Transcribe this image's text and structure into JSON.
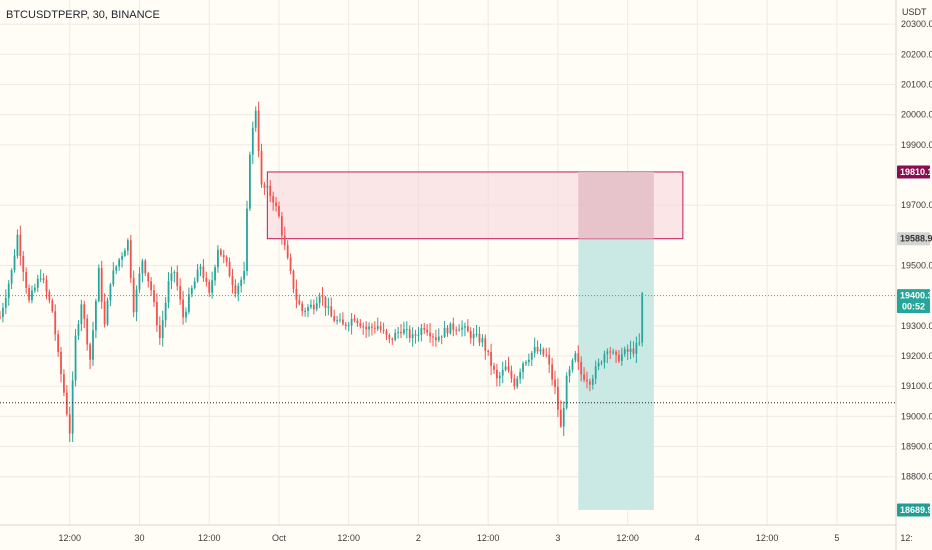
{
  "header": {
    "symbol": "BTCUSDTPERP, 30, BINANCE",
    "currency": "USDT"
  },
  "colors": {
    "background": "#fffdf5",
    "grid": "#ecebe4",
    "up": "#26a69a",
    "down": "#ef5350",
    "stop_zone": "#f7d4da",
    "stop_overlap": "#e4bfc8",
    "stop_border": "#c2185b",
    "target_zone": "#c7e8e3",
    "current_line": "#26a69a",
    "support_line": "#222222",
    "axis_text": "#3b3b3b"
  },
  "chart_data": {
    "type": "candlestick",
    "symbol": "BTCUSDTPERP",
    "interval": "30",
    "exchange": "BINANCE",
    "y_range": [
      18640,
      20380
    ],
    "x_range_hours": [
      -12,
      142
    ],
    "y_ticks": [
      "20300.0",
      "20200.0",
      "20100.0",
      "20000.0",
      "19900.0",
      "19700.0",
      "19500.0",
      "19300.0",
      "19200.0",
      "19100.0",
      "19000.0",
      "18900.0",
      "18800.0"
    ],
    "x_ticks": [
      {
        "label": "12:00",
        "h": 0
      },
      {
        "label": "30",
        "h": 12
      },
      {
        "label": "12:00",
        "h": 24
      },
      {
        "label": "Oct",
        "h": 36
      },
      {
        "label": "12:00",
        "h": 48
      },
      {
        "label": "2",
        "h": 60
      },
      {
        "label": "12:00",
        "h": 72
      },
      {
        "label": "3",
        "h": 84
      },
      {
        "label": "12:00",
        "h": 96
      },
      {
        "label": "4",
        "h": 108
      },
      {
        "label": "12:00",
        "h": 120
      },
      {
        "label": "5",
        "h": 132
      },
      {
        "label": "12:",
        "h": 144
      }
    ],
    "price_labels": {
      "stop": "19810.1",
      "entry": "19588.9",
      "current": "19400.3",
      "countdown": "00:52",
      "target": "18689.9"
    },
    "position": {
      "side": "short",
      "entry": 19588.9,
      "stop": 19810.1,
      "target": 18689.9,
      "start_h": 87.5,
      "end_h": 100.5,
      "stop_zone_start_h": 34,
      "stop_zone_end_h": 105.5
    },
    "support_line": 19045,
    "anchors": [
      [
        -12,
        19330
      ],
      [
        -10,
        19480
      ],
      [
        -9,
        19600
      ],
      [
        -7,
        19380
      ],
      [
        -5,
        19470
      ],
      [
        -3,
        19350
      ],
      [
        -2,
        19200
      ],
      [
        -1,
        19080
      ],
      [
        0,
        18950
      ],
      [
        1,
        19260
      ],
      [
        2,
        19380
      ],
      [
        3.5,
        19190
      ],
      [
        5,
        19480
      ],
      [
        6,
        19300
      ],
      [
        7,
        19450
      ],
      [
        8.5,
        19520
      ],
      [
        10,
        19580
      ],
      [
        11,
        19360
      ],
      [
        12.5,
        19520
      ],
      [
        14,
        19420
      ],
      [
        15.5,
        19260
      ],
      [
        17,
        19440
      ],
      [
        18,
        19480
      ],
      [
        19.5,
        19330
      ],
      [
        21,
        19420
      ],
      [
        22.5,
        19500
      ],
      [
        24,
        19400
      ],
      [
        25.5,
        19560
      ],
      [
        27,
        19500
      ],
      [
        28.5,
        19420
      ],
      [
        30,
        19470
      ],
      [
        31,
        19880
      ],
      [
        32,
        20020
      ],
      [
        33,
        19760
      ],
      [
        34,
        19750
      ],
      [
        35,
        19720
      ],
      [
        36,
        19660
      ],
      [
        37,
        19560
      ],
      [
        38,
        19470
      ],
      [
        39,
        19390
      ],
      [
        40,
        19350
      ],
      [
        42,
        19370
      ],
      [
        43,
        19410
      ],
      [
        45,
        19330
      ],
      [
        47,
        19300
      ],
      [
        49,
        19330
      ],
      [
        51,
        19290
      ],
      [
        53,
        19300
      ],
      [
        55,
        19250
      ],
      [
        57,
        19290
      ],
      [
        59,
        19260
      ],
      [
        61,
        19300
      ],
      [
        63,
        19260
      ],
      [
        65,
        19290
      ],
      [
        67,
        19300
      ],
      [
        69,
        19270
      ],
      [
        71,
        19250
      ],
      [
        72,
        19200
      ],
      [
        73.5,
        19120
      ],
      [
        75,
        19160
      ],
      [
        76.5,
        19110
      ],
      [
        78,
        19180
      ],
      [
        80,
        19220
      ],
      [
        82,
        19200
      ],
      [
        83.5,
        19090
      ],
      [
        84.5,
        18960
      ],
      [
        85.5,
        19120
      ],
      [
        87,
        19200
      ],
      [
        88,
        19140
      ],
      [
        89.5,
        19120
      ],
      [
        91,
        19170
      ],
      [
        92.5,
        19230
      ],
      [
        94,
        19190
      ],
      [
        95.5,
        19210
      ],
      [
        97,
        19220
      ],
      [
        98,
        19240
      ],
      [
        98.5,
        19400.3
      ]
    ]
  }
}
